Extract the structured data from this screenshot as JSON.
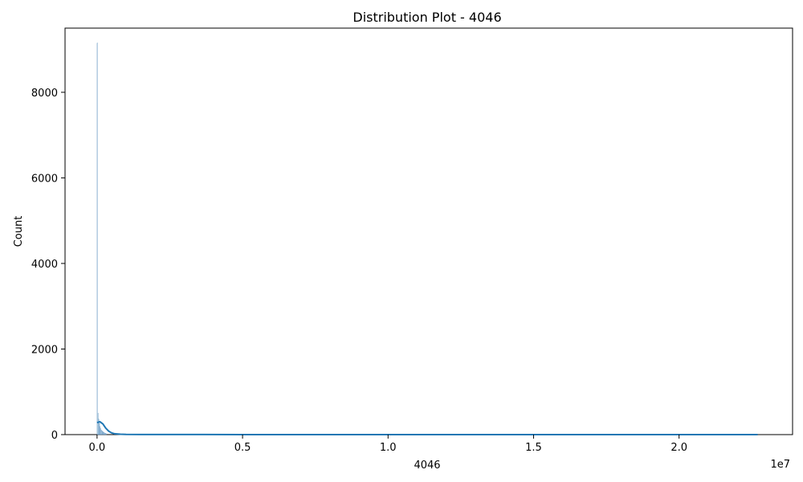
{
  "chart_data": {
    "type": "histogram",
    "title": "Distribution Plot - 4046",
    "xlabel": "4046",
    "ylabel": "Count",
    "x_offset_label": "1e7",
    "xlim": [
      -1100000,
      23900000
    ],
    "ylim": [
      0,
      9500
    ],
    "x_ticks": [
      0,
      5000000,
      10000000,
      15000000,
      20000000
    ],
    "x_tick_labels": [
      "0.0",
      "0.5",
      "1.0",
      "1.5",
      "2.0"
    ],
    "y_ticks": [
      0,
      2000,
      4000,
      6000,
      8000
    ],
    "y_tick_labels": [
      "0",
      "2000",
      "4000",
      "6000",
      "8000"
    ],
    "grid": false,
    "legend": "none",
    "bins": [
      {
        "x": 0,
        "count": 9150
      },
      {
        "x": 22000,
        "count": 500
      },
      {
        "x": 44000,
        "count": 360
      },
      {
        "x": 66000,
        "count": 260
      },
      {
        "x": 88000,
        "count": 190
      },
      {
        "x": 110000,
        "count": 140
      },
      {
        "x": 132000,
        "count": 110
      },
      {
        "x": 154000,
        "count": 90
      },
      {
        "x": 176000,
        "count": 75
      },
      {
        "x": 198000,
        "count": 60
      },
      {
        "x": 220000,
        "count": 50
      },
      {
        "x": 242000,
        "count": 40
      },
      {
        "x": 264000,
        "count": 32
      },
      {
        "x": 286000,
        "count": 26
      },
      {
        "x": 308000,
        "count": 20
      }
    ],
    "kde": {
      "x": [
        0,
        100000,
        200000,
        300000,
        400000,
        500000,
        600000,
        800000,
        1000000,
        1500000,
        2000000,
        5000000,
        10000000,
        15000000,
        20000000,
        22700000
      ],
      "y": [
        280,
        300,
        250,
        150,
        80,
        40,
        20,
        10,
        5,
        3,
        2,
        1,
        0,
        0,
        0,
        0
      ]
    },
    "colors": {
      "bar_fill": "#a9c8e0",
      "bar_edge": "#5a8fbc",
      "kde_line": "#1f77b4"
    }
  }
}
